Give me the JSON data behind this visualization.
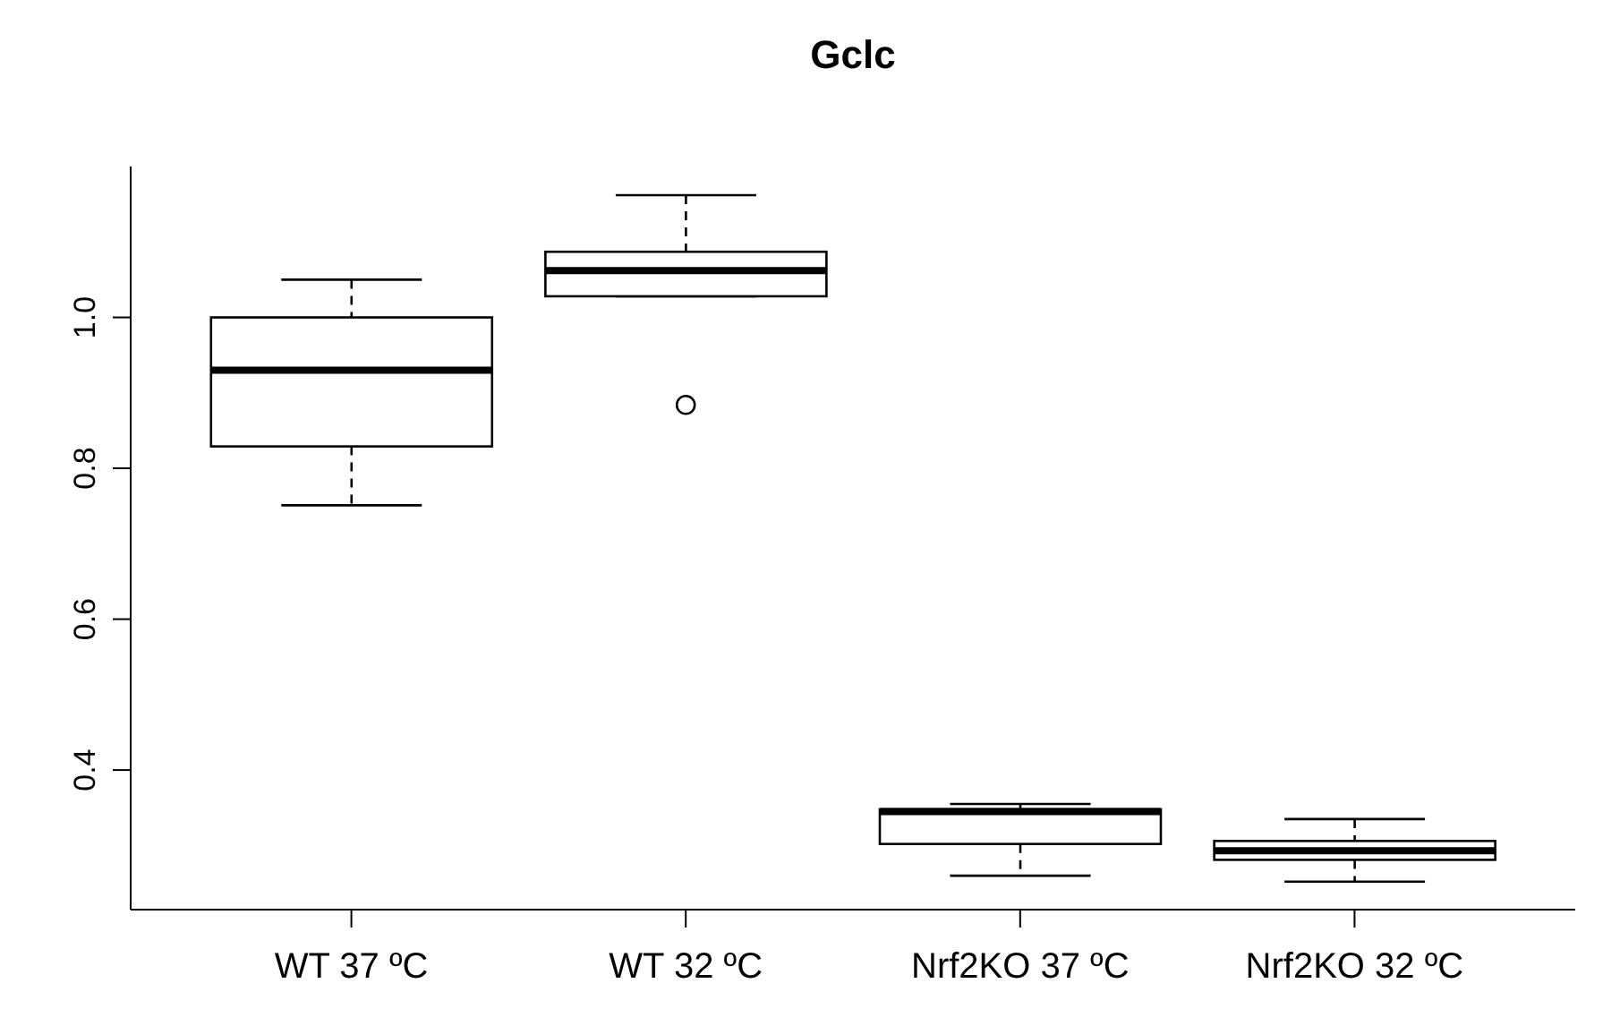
{
  "chart_data": {
    "type": "box",
    "title": "Gclc",
    "categories": [
      "WT 37 ºC",
      "WT 32 ºC",
      "Nrf2KO 37 ºC",
      "Nrf2KO 32 ºC"
    ],
    "boxes": [
      {
        "low": 0.751,
        "q1": 0.829,
        "median": 0.93,
        "q3": 1.0,
        "high": 1.05
      },
      {
        "low": 1.028,
        "q1": 1.028,
        "median": 1.062,
        "q3": 1.087,
        "high": 1.162,
        "outliers": [
          0.884
        ]
      },
      {
        "low": 0.26,
        "q1": 0.302,
        "median": 0.345,
        "q3": 0.348,
        "high": 0.355
      },
      {
        "low": 0.252,
        "q1": 0.281,
        "median": 0.293,
        "q3": 0.306,
        "high": 0.335
      }
    ],
    "ylim": [
      0.215,
      1.2
    ],
    "yticks": [
      {
        "value": 0.4,
        "label": "0.4"
      },
      {
        "value": 0.6,
        "label": "0.6"
      },
      {
        "value": 0.8,
        "label": "0.8"
      },
      {
        "value": 1,
        "label": "1.0"
      }
    ]
  }
}
